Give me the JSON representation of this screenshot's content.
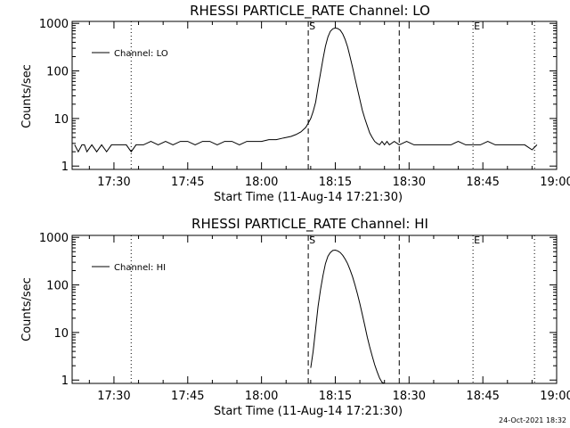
{
  "chart_data": [
    {
      "type": "line",
      "title": "RHESSI PARTICLE_RATE Channel: LO",
      "xlabel": "Start Time (11-Aug-14 17:21:30)",
      "ylabel": "Counts/sec",
      "yscale": "log",
      "ylim": [
        0.85,
        1100
      ],
      "y_ticks": [
        1,
        10,
        100,
        1000
      ],
      "y_tick_labels": [
        "1",
        "10",
        "100",
        "1000"
      ],
      "xlim": [
        "17:21:30",
        "19:00:00"
      ],
      "x_ticks": [
        "17:30",
        "17:45",
        "18:00",
        "18:15",
        "18:30",
        "18:45",
        "19:00"
      ],
      "x_tick_labels": [
        "17:30",
        "17:45",
        "18:00",
        "18:15",
        "18:30",
        "18:45",
        "19:00"
      ],
      "legend": {
        "label": "Channel: LO",
        "position": "top-left"
      },
      "markers": [
        {
          "time": "17:33:30",
          "style": "dotted",
          "label": ""
        },
        {
          "time": "18:09:30",
          "style": "dashed",
          "label": "S"
        },
        {
          "time": "18:28:00",
          "style": "dashed",
          "label": ""
        },
        {
          "time": "18:43:00",
          "style": "dotted",
          "label": "E"
        },
        {
          "time": "18:55:30",
          "style": "dotted",
          "label": ""
        }
      ],
      "series": [
        {
          "name": "Channel: LO",
          "x": [
            "17:22:00",
            "17:22:45",
            "17:23:30",
            "17:24:00",
            "17:24:30",
            "17:25:30",
            "17:26:30",
            "17:27:30",
            "17:28:30",
            "17:29:30",
            "17:30:30",
            "17:31:30",
            "17:32:30",
            "17:33:30",
            "17:34:30",
            "17:36:00",
            "17:37:30",
            "17:39:00",
            "17:40:30",
            "17:42:00",
            "17:43:30",
            "17:45:00",
            "17:46:30",
            "17:48:00",
            "17:49:30",
            "17:51:00",
            "17:52:30",
            "17:54:00",
            "17:55:30",
            "17:57:00",
            "17:58:30",
            "18:00:00",
            "18:01:30",
            "18:03:00",
            "18:04:30",
            "18:06:00",
            "18:07:00",
            "18:08:00",
            "18:09:00",
            "18:09:30",
            "18:10:00",
            "18:10:30",
            "18:11:00",
            "18:11:30",
            "18:12:00",
            "18:12:30",
            "18:13:00",
            "18:13:30",
            "18:14:00",
            "18:14:30",
            "18:15:00",
            "18:15:30",
            "18:16:00",
            "18:16:30",
            "18:17:00",
            "18:17:30",
            "18:18:00",
            "18:18:30",
            "18:19:00",
            "18:19:30",
            "18:20:00",
            "18:20:30",
            "18:21:00",
            "18:21:30",
            "18:22:00",
            "18:22:30",
            "18:23:00",
            "18:23:30",
            "18:24:00",
            "18:24:30",
            "18:25:00",
            "18:25:30",
            "18:26:00",
            "18:27:00",
            "18:28:00",
            "18:29:30",
            "18:31:00",
            "18:32:30",
            "18:34:00",
            "18:35:30",
            "18:37:00",
            "18:38:30",
            "18:40:00",
            "18:41:30",
            "18:43:00",
            "18:44:30",
            "18:46:00",
            "18:47:30",
            "18:49:00",
            "18:50:30",
            "18:52:00",
            "18:53:30",
            "18:55:00",
            "18:56:00"
          ],
          "y": [
            2.8,
            2.0,
            2.8,
            2.8,
            2.0,
            2.8,
            2.0,
            2.8,
            2.0,
            2.8,
            2.8,
            2.8,
            2.8,
            2.0,
            2.8,
            2.8,
            3.3,
            2.8,
            3.3,
            2.8,
            3.3,
            3.3,
            2.8,
            3.3,
            3.3,
            2.8,
            3.3,
            3.3,
            2.8,
            3.3,
            3.3,
            3.3,
            3.6,
            3.6,
            3.9,
            4.2,
            4.6,
            5.2,
            6.5,
            8.0,
            10,
            14,
            22,
            45,
            90,
            180,
            330,
            520,
            680,
            770,
            800,
            780,
            720,
            600,
            460,
            320,
            200,
            120,
            70,
            42,
            25,
            15,
            10,
            7,
            5,
            4,
            3.3,
            3.0,
            2.8,
            3.3,
            2.8,
            3.3,
            2.8,
            3.3,
            2.8,
            3.3,
            2.8,
            2.8,
            2.8,
            2.8,
            2.8,
            2.8,
            3.3,
            2.8,
            2.8,
            2.8,
            3.3,
            2.8,
            2.8,
            2.8,
            2.8,
            2.8,
            2.2,
            2.8
          ]
        }
      ]
    },
    {
      "type": "line",
      "title": "RHESSI PARTICLE_RATE Channel: HI",
      "xlabel": "Start Time (11-Aug-14 17:21:30)",
      "ylabel": "Counts/sec",
      "yscale": "log",
      "ylim": [
        0.85,
        1100
      ],
      "y_ticks": [
        1,
        10,
        100,
        1000
      ],
      "y_tick_labels": [
        "1",
        "10",
        "100",
        "1000"
      ],
      "xlim": [
        "17:21:30",
        "19:00:00"
      ],
      "x_ticks": [
        "17:30",
        "17:45",
        "18:00",
        "18:15",
        "18:30",
        "18:45",
        "19:00"
      ],
      "x_tick_labels": [
        "17:30",
        "17:45",
        "18:00",
        "18:15",
        "18:30",
        "18:45",
        "19:00"
      ],
      "legend": {
        "label": "Channel: HI",
        "position": "top-left"
      },
      "markers": [
        {
          "time": "17:33:30",
          "style": "dotted",
          "label": ""
        },
        {
          "time": "18:09:30",
          "style": "dashed",
          "label": "S"
        },
        {
          "time": "18:28:00",
          "style": "dashed",
          "label": ""
        },
        {
          "time": "18:43:00",
          "style": "dotted",
          "label": "E"
        },
        {
          "time": "18:55:30",
          "style": "dotted",
          "label": ""
        }
      ],
      "series": [
        {
          "name": "Channel: HI",
          "x": [
            "18:10:00",
            "18:10:30",
            "18:11:00",
            "18:11:30",
            "18:12:00",
            "18:12:30",
            "18:13:00",
            "18:13:30",
            "18:14:00",
            "18:14:30",
            "18:15:00",
            "18:15:30",
            "18:16:00",
            "18:16:30",
            "18:17:00",
            "18:17:30",
            "18:18:00",
            "18:18:30",
            "18:19:00",
            "18:19:30",
            "18:20:00",
            "18:20:30",
            "18:21:00",
            "18:21:30",
            "18:22:00",
            "18:22:30",
            "18:23:00",
            "18:23:30",
            "18:24:00",
            "18:24:30",
            "18:25:00"
          ],
          "y": [
            1.8,
            4,
            12,
            35,
            80,
            160,
            280,
            400,
            480,
            530,
            540,
            520,
            480,
            420,
            350,
            280,
            210,
            150,
            100,
            65,
            40,
            24,
            14,
            8,
            5,
            3.2,
            2.1,
            1.5,
            1.1,
            0.9,
            0.8
          ]
        }
      ]
    }
  ],
  "footer": {
    "timestamp": "24-Oct-2021 18:32"
  }
}
